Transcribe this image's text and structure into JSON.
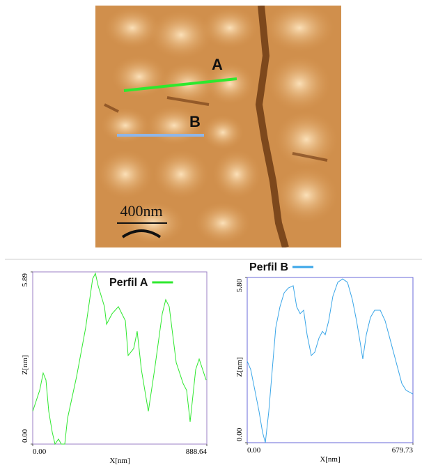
{
  "image": {
    "labels": [
      "A",
      "B"
    ],
    "scale_bar": "400nm"
  },
  "chart_data": [
    {
      "type": "line",
      "x_label": "X[nm]",
      "y_label": "Z[nm]",
      "xlim": [
        0,
        888.64
      ],
      "ylim": [
        0,
        5.89
      ],
      "xticks": [
        {
          "value": 0,
          "label": "0.00"
        },
        888.64
      ],
      "yticks": [
        {
          "value": 0,
          "label": "0.00"
        },
        5.89
      ],
      "legend": "upper right",
      "series": [
        {
          "name": "Perfil A",
          "color": "#2ee82e",
          "x": [
            0,
            35.5,
            53.3,
            67.5,
            81.8,
            99.5,
            113.7,
            131.5,
            145.7,
            163.5,
            177.7,
            223.9,
            270.2,
            305.7,
            319.9,
            334.1,
            366.1,
            376.8,
            405.2,
            437.2,
            472.8,
            487.0,
            515.4,
            533.2,
            554.5,
            590.1,
            622.1,
            661.2,
            678.9,
            696.7,
            732.3,
            767.8,
            785.6,
            803.4,
            831.8,
            849.6,
            885.1
          ],
          "values": [
            1.12,
            1.84,
            2.43,
            2.19,
            1.12,
            0.41,
            0,
            0.17,
            0,
            0,
            0.88,
            2.31,
            3.98,
            5.65,
            5.84,
            5.41,
            4.7,
            4.1,
            4.46,
            4.7,
            4.22,
            3.03,
            3.27,
            3.86,
            2.55,
            1.12,
            2.55,
            4.46,
            4.94,
            4.7,
            2.79,
            2.07,
            1.84,
            0.76,
            2.55,
            2.91,
            2.19
          ]
        }
      ]
    },
    {
      "type": "line",
      "x_label": "X[nm]",
      "y_label": "Z[nm]",
      "xlim": [
        0,
        679.73
      ],
      "ylim": [
        0,
        5.8
      ],
      "xticks": [
        {
          "value": 0,
          "label": "0.00"
        },
        679.73
      ],
      "yticks": [
        {
          "value": 0,
          "label": "0.00"
        },
        {
          "value": 5.8,
          "label": "5.80"
        }
      ],
      "legend": "above left",
      "series": [
        {
          "name": "Perfil B",
          "color": "#3aa6e8",
          "x": [
            0,
            14.3,
            31.4,
            48.5,
            62.8,
            74.3,
            88.5,
            102.8,
            117.1,
            134.2,
            151.4,
            168.5,
            188.5,
            202.8,
            217.1,
            231.4,
            245.6,
            262.8,
            277.1,
            294.2,
            308.5,
            319.9,
            334.2,
            351.3,
            371.3,
            391.3,
            411.3,
            431.3,
            448.4,
            462.7,
            474.1,
            488.4,
            505.6,
            522.7,
            545.6,
            565.6,
            588.4,
            611.3,
            634.1,
            651.3,
            679.7
          ],
          "values": [
            2.86,
            2.57,
            1.84,
            1.1,
            0.37,
            0,
            1.1,
            2.57,
            4.04,
            4.77,
            5.26,
            5.43,
            5.51,
            4.77,
            4.53,
            4.65,
            3.79,
            3.06,
            3.18,
            3.67,
            3.91,
            3.79,
            4.28,
            5.14,
            5.63,
            5.75,
            5.63,
            5.02,
            4.28,
            3.55,
            2.94,
            3.79,
            4.4,
            4.65,
            4.65,
            4.28,
            3.55,
            2.81,
            2.08,
            1.84,
            1.71
          ]
        }
      ]
    }
  ]
}
